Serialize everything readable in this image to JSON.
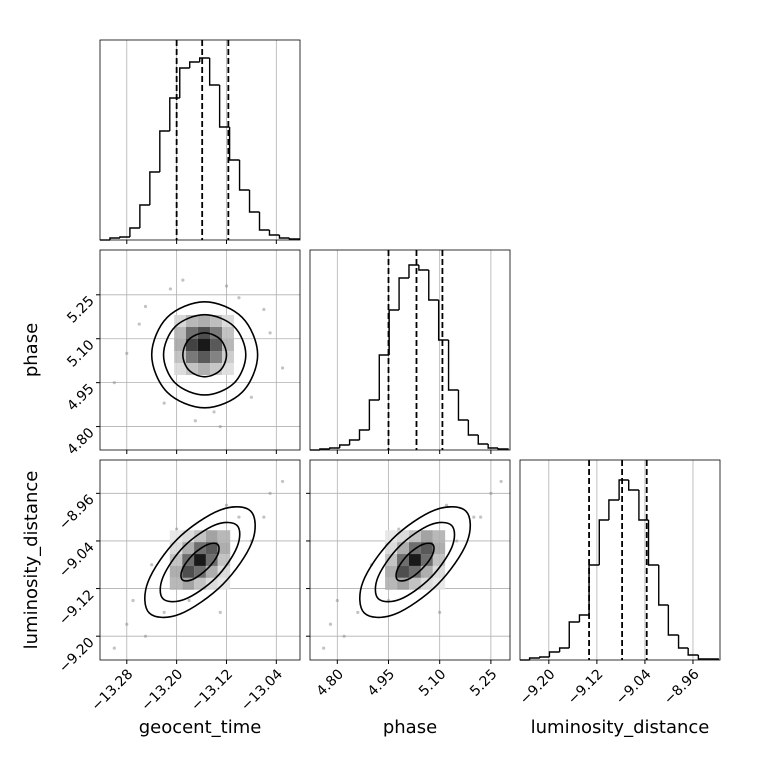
{
  "chart_data": {
    "type": "corner",
    "parameters": [
      {
        "name": "geocent_time",
        "xlim": [
          -13.323,
          -13.002
        ],
        "ticks": [
          {
            "value": -13.28,
            "label": "−13.28"
          },
          {
            "value": -13.2,
            "label": "−13.20"
          },
          {
            "value": -13.12,
            "label": "−13.12"
          },
          {
            "value": -13.04,
            "label": "−13.04"
          }
        ],
        "hist": {
          "ylim": [
            0,
            200
          ],
          "bins": [
            -13.323,
            -13.307,
            -13.291,
            -13.275,
            -13.259,
            -13.243,
            -13.227,
            -13.211,
            -13.195,
            -13.179,
            -13.163,
            -13.147,
            -13.131,
            -13.115,
            -13.099,
            -13.083,
            -13.067,
            -13.051,
            -13.035,
            -13.019,
            -13.003
          ],
          "counts": [
            0,
            2,
            3,
            12,
            35,
            68,
            109,
            142,
            172,
            178,
            182,
            155,
            113,
            80,
            50,
            28,
            10,
            5,
            2,
            1
          ]
        },
        "quantiles": [
          -13.2,
          -13.159,
          -13.117
        ]
      },
      {
        "name": "phase",
        "xlim": [
          4.72,
          5.306
        ],
        "ylim": [
          4.72,
          5.403
        ],
        "ticks": [
          {
            "value": 4.8,
            "label": "4.80"
          },
          4.95,
          {
            "value": 5.1,
            "label": "5.10"
          },
          5.25
        ],
        "hist": {
          "ylim": [
            0,
            200
          ],
          "bins": [
            4.72,
            4.749,
            4.778,
            4.807,
            4.836,
            4.865,
            4.894,
            4.923,
            4.952,
            4.981,
            5.01,
            5.039,
            5.068,
            5.097,
            5.126,
            5.155,
            5.184,
            5.213,
            5.242,
            5.271,
            5.3
          ],
          "counts": [
            0,
            1,
            2,
            5,
            10,
            20,
            50,
            95,
            140,
            172,
            185,
            180,
            150,
            110,
            60,
            30,
            15,
            6,
            2,
            1
          ]
        },
        "quantiles": [
          4.95,
          5.032,
          5.108
        ]
      },
      {
        "name": "luminosity_distance",
        "xlim": [
          -9.248,
          -8.915
        ],
        "ylim": [
          -9.24,
          -8.904
        ],
        "ticks": [
          {
            "value": -9.2,
            "label": "−9.20"
          },
          {
            "value": -9.12,
            "label": "−9.12"
          },
          {
            "value": -9.04,
            "label": "−9.04"
          },
          {
            "value": -8.96,
            "label": "−8.96"
          }
        ],
        "hist": {
          "ylim": [
            0,
            200
          ],
          "bins": [
            -9.248,
            -9.232,
            -9.215,
            -9.199,
            -9.182,
            -9.166,
            -9.149,
            -9.133,
            -9.116,
            -9.1,
            -9.083,
            -9.067,
            -9.05,
            -9.034,
            -9.017,
            -9.001,
            -8.984,
            -8.968,
            -8.951,
            -8.935,
            -8.918
          ],
          "counts": [
            0,
            2,
            3,
            8,
            12,
            38,
            45,
            95,
            140,
            160,
            180,
            170,
            140,
            95,
            55,
            25,
            12,
            5,
            1,
            1
          ]
        },
        "quantiles": [
          -9.133,
          -9.078,
          -9.037
        ]
      }
    ],
    "pairs": [
      {
        "points": {
          "x": [
            -13.28,
            -13.25,
            -13.22,
            -13.19,
            -13.12,
            -13.08,
            -13.05,
            -13.03,
            -13.3,
            -13.1,
            -13.17,
            -13.14,
            -13.26,
            -13.06,
            -13.21,
            -13.13
          ],
          "y": [
            5.05,
            5.21,
            4.88,
            5.3,
            5.28,
            4.9,
            5.12,
            5.0,
            4.95,
            5.24,
            4.82,
            4.85,
            5.15,
            5.2,
            5.27,
            4.8
          ]
        },
        "hist2d": {
          "xbins": [
            -13.204,
            -13.185,
            -13.166,
            -13.146,
            -13.127,
            -13.108
          ],
          "ybins": [
            5.181,
            5.14,
            5.099,
            5.058,
            5.017,
            4.976
          ],
          "counts": [
            [
              10,
              25,
              30,
              22,
              8
            ],
            [
              25,
              60,
              75,
              55,
              20
            ],
            [
              30,
              80,
              100,
              70,
              25
            ],
            [
              20,
              55,
              70,
              50,
              15
            ],
            [
              8,
              20,
              28,
              18,
              6
            ]
          ]
        },
        "contours": [
          {
            "x": [
              -13.07,
              -13.095,
              -13.155,
              -13.215,
              -13.24,
              -13.215,
              -13.155,
              -13.095
            ],
            "y": [
              5.045,
              5.173,
              5.226,
              5.173,
              5.045,
              4.917,
              4.864,
              4.917
            ]
          },
          {
            "x": [
              -13.089,
              -13.108,
              -13.155,
              -13.202,
              -13.221,
              -13.202,
              -13.155,
              -13.108
            ],
            "y": [
              5.045,
              5.142,
              5.182,
              5.142,
              5.045,
              4.948,
              4.908,
              4.948
            ]
          },
          {
            "x": [
              -13.12,
              -13.13,
              -13.155,
              -13.18,
              -13.19,
              -13.18,
              -13.155,
              -13.13
            ],
            "y": [
              5.045,
              5.098,
              5.12,
              5.098,
              5.045,
              4.992,
              4.97,
              4.992
            ]
          }
        ]
      },
      {
        "points": {
          "x": [
            -13.28,
            -13.25,
            -13.22,
            -13.27,
            -13.1,
            -13.05,
            -13.03,
            -13.08,
            -13.3,
            -13.12,
            -13.18,
            -13.15,
            -13.24,
            -13.06,
            -13.2,
            -13.13
          ],
          "y": [
            -9.18,
            -9.2,
            -9.16,
            -9.14,
            -9.0,
            -8.96,
            -8.94,
            -9.04,
            -9.22,
            -8.98,
            -9.14,
            -9.1,
            -9.08,
            -9.0,
            -9.02,
            -9.16
          ]
        },
        "hist2d": {
          "xbins": [
            -13.211,
            -13.191,
            -13.172,
            -13.153,
            -13.134,
            -13.114
          ],
          "ybins": [
            -9.022,
            -9.042,
            -9.062,
            -9.082,
            -9.102,
            -9.122
          ],
          "counts": [
            [
              2,
              8,
              20,
              35,
              25
            ],
            [
              8,
              30,
              60,
              70,
              30
            ],
            [
              20,
              60,
              100,
              60,
              20
            ],
            [
              30,
              75,
              60,
              30,
              8
            ],
            [
              25,
              35,
              20,
              8,
              2
            ]
          ]
        },
        "contours": [
          {
            "x": [
              -13.081,
              -13.079,
              -13.126,
              -13.195,
              -13.244,
              -13.246,
              -13.199,
              -13.13
            ],
            "y": [
              -8.99,
              -9.042,
              -9.113,
              -9.163,
              -9.161,
              -9.109,
              -9.037,
              -8.988
            ]
          },
          {
            "x": [
              -13.103,
              -13.103,
              -13.137,
              -13.187,
              -13.222,
              -13.222,
              -13.188,
              -13.138
            ],
            "y": [
              -9.014,
              -9.05,
              -9.102,
              -9.138,
              -9.137,
              -9.101,
              -9.049,
              -9.013
            ]
          },
          {
            "x": [
              -13.134,
              -13.134,
              -13.151,
              -13.175,
              -13.191,
              -13.191,
              -13.174,
              -13.15
            ],
            "y": [
              -9.046,
              -9.063,
              -9.087,
              -9.105,
              -9.105,
              -9.088,
              -9.063,
              -9.046
            ]
          }
        ]
      },
      {
        "points": {
          "x": [
            4.78,
            4.82,
            4.86,
            4.8,
            5.2,
            5.25,
            5.28,
            5.15,
            4.76,
            5.12,
            4.95,
            5.05,
            4.9,
            5.22,
            4.98,
            5.1
          ],
          "y": [
            -9.18,
            -9.2,
            -9.16,
            -9.14,
            -9.0,
            -8.96,
            -8.94,
            -9.04,
            -9.22,
            -8.98,
            -9.14,
            -9.1,
            -9.08,
            -9.0,
            -9.02,
            -9.16
          ]
        },
        "hist2d": {
          "xbins": [
            4.94,
            4.975,
            5.01,
            5.045,
            5.08,
            5.116
          ],
          "ybins": [
            -9.022,
            -9.042,
            -9.062,
            -9.082,
            -9.102,
            -9.122
          ],
          "counts": [
            [
              2,
              8,
              20,
              35,
              25
            ],
            [
              8,
              30,
              60,
              70,
              30
            ],
            [
              20,
              60,
              100,
              60,
              20
            ],
            [
              30,
              75,
              60,
              30,
              8
            ],
            [
              25,
              35,
              20,
              8,
              2
            ]
          ]
        },
        "contours": [
          {
            "x": [
              5.177,
              5.18,
              5.094,
              4.969,
              4.879,
              4.875,
              4.961,
              5.086
            ],
            "y": [
              -8.99,
              -9.042,
              -9.113,
              -9.163,
              -9.161,
              -9.109,
              -9.037,
              -8.988
            ]
          },
          {
            "x": [
              5.135,
              5.136,
              5.073,
              4.984,
              4.92,
              4.919,
              4.982,
              5.072
            ],
            "y": [
              -9.014,
              -9.05,
              -9.102,
              -9.138,
              -9.137,
              -9.101,
              -9.049,
              -9.013
            ]
          },
          {
            "x": [
              5.08,
              5.079,
              5.048,
              5.006,
              4.976,
              4.976,
              5.007,
              5.05
            ],
            "y": [
              -9.046,
              -9.063,
              -9.087,
              -9.105,
              -9.105,
              -9.088,
              -9.063,
              -9.046
            ]
          }
        ]
      }
    ]
  }
}
